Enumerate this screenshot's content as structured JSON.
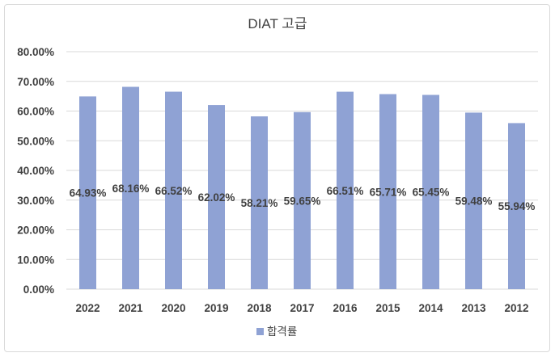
{
  "chart_data": {
    "type": "bar",
    "title": "DIAT 고급",
    "categories": [
      "2022",
      "2021",
      "2020",
      "2019",
      "2018",
      "2017",
      "2016",
      "2015",
      "2014",
      "2013",
      "2012"
    ],
    "series": [
      {
        "name": "합격률",
        "values": [
          64.93,
          68.16,
          66.52,
          62.02,
          58.21,
          59.65,
          66.51,
          65.71,
          65.45,
          59.48,
          55.94
        ],
        "labels": [
          "64.93%",
          "68.16%",
          "66.52%",
          "62.02%",
          "58.21%",
          "59.65%",
          "66.51%",
          "65.71%",
          "65.45%",
          "59.48%",
          "55.94%"
        ]
      }
    ],
    "ylim": [
      0,
      80
    ],
    "yticks": [
      "0.00%",
      "10.00%",
      "20.00%",
      "30.00%",
      "40.00%",
      "50.00%",
      "60.00%",
      "70.00%",
      "80.00%"
    ],
    "grid": true,
    "legend_position": "bottom",
    "colors": {
      "bar": "#8fa2d4",
      "grid": "#d9d9d9",
      "text": "#404040"
    }
  }
}
